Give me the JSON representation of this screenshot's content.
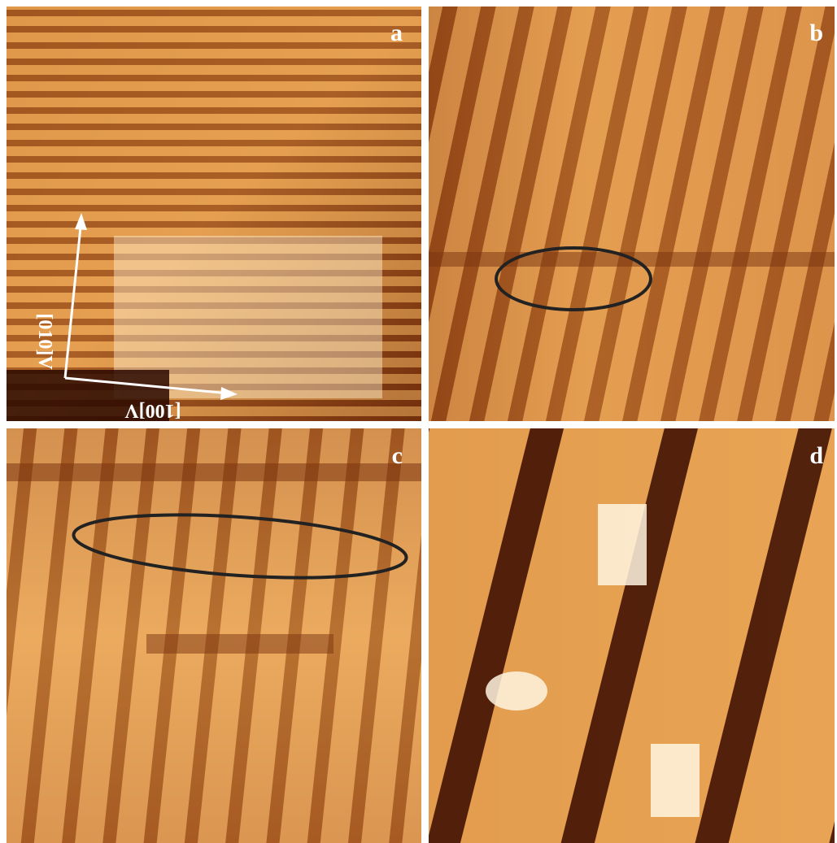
{
  "panels": [
    {
      "label": "a"
    },
    {
      "label": "b"
    },
    {
      "label": "c"
    },
    {
      "label": "d"
    }
  ],
  "axes": {
    "x": "[100]V",
    "y": "[010]V"
  }
}
